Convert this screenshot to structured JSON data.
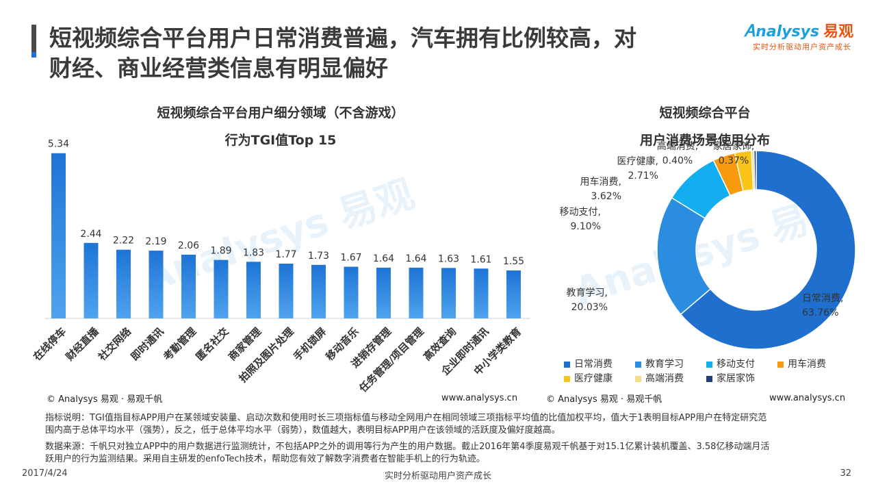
{
  "header": {
    "title_line1": "短视频综合平台用户日常消费普遍，汽车拥有比例较高，对",
    "title_line2": "财经、商业经营类信息有明显偏好",
    "logo_text": "nalysys",
    "logo_cn": "易观",
    "logo_tagline": "实时分析驱动用户资产成长"
  },
  "watermarks": {
    "left": "Analysys 易观",
    "right": "Analysys 易观"
  },
  "left_chart": {
    "title_line1": "短视频综合平台用户细分领域（不含游戏）",
    "title_line2": "行为TGI值Top 15",
    "copyright": "© Analysys 易观 · 易观千帆",
    "site": "www.analysys.cn"
  },
  "right_chart": {
    "title_line1": "短视频综合平台",
    "title_line2": "用户消费场景使用分布",
    "copyright": "© Analysys 易观 · 易观千帆",
    "site": "www.analysys.cn"
  },
  "chart_data": [
    {
      "type": "bar",
      "title": "短视频综合平台用户细分领域（不含游戏）行为TGI值Top 15",
      "categories": [
        "在线停车",
        "财经直播",
        "社交网络",
        "即时通讯",
        "考勤管理",
        "匿名社交",
        "商家管理",
        "拍照及图片处理",
        "手机锁屏",
        "移动音乐",
        "进销存管理",
        "任务管理/项目管理",
        "高效查询",
        "企业即时通讯",
        "中小学类教育"
      ],
      "values": [
        5.34,
        2.44,
        2.22,
        2.19,
        2.06,
        1.89,
        1.83,
        1.77,
        1.73,
        1.67,
        1.64,
        1.64,
        1.63,
        1.61,
        1.55
      ],
      "value_labels": [
        "5.34",
        "2.44",
        "2.22",
        "2.19",
        "2.06",
        "1.89",
        "1.83",
        "1.77",
        "1.73",
        "1.67",
        "1.64",
        "1.64",
        "1.63",
        "1.61",
        "1.55"
      ],
      "ylim": [
        0,
        5.6
      ],
      "bar_color": "#1e74d6",
      "bar_color_light": "#4fa3ee"
    },
    {
      "type": "pie",
      "title": "短视频综合平台用户消费场景使用分布",
      "labels": [
        "日常消费",
        "教育学习",
        "移动支付",
        "用车消费",
        "医疗健康",
        "高端消费",
        "家居家饰"
      ],
      "values": [
        63.76,
        20.03,
        9.1,
        3.62,
        2.71,
        0.4,
        0.37
      ],
      "value_labels": [
        "63.76%",
        "20.03%",
        "9.10%",
        "3.62%",
        "2.71%",
        "0.40%",
        "0.37%"
      ],
      "colors": [
        "#1e6fce",
        "#2a8de0",
        "#13aef0",
        "#f79a0e",
        "#f8c418",
        "#f4dc86",
        "#1d3f7a"
      ],
      "donut": true
    }
  ],
  "notes": {
    "metric_line1": "指标说明：TGI值指目标APP用户在某领域安装量、启动次数和使用时长三项指标值与移动全网用户在相同领域三项指标平均值的比值加权平均，值大于1表明目标APP用户在特定研究范",
    "metric_line2": "围内高于总体平均水平（强势），反之，低于总体平均水平（弱势），数值越大，表明目标APP用户在该领域的活跃度及偏好度越高。",
    "source_line1": "数据来源：千帆只对独立APP中的用户数据进行监测统计，不包括APP之外的调用等行为产生的用户数据。截止2016年第4季度易观千帆基于对15.1亿累计装机覆盖、3.58亿移动端月活",
    "source_line2": "跃用户的行为监测结果。采用自主研发的enfoTech技术，帮助您有效了解数字消费者在智能手机上的行为轨迹。"
  },
  "footer": {
    "date": "2017/4/24",
    "center": "实时分析驱动用户资产成长",
    "page": "32"
  }
}
